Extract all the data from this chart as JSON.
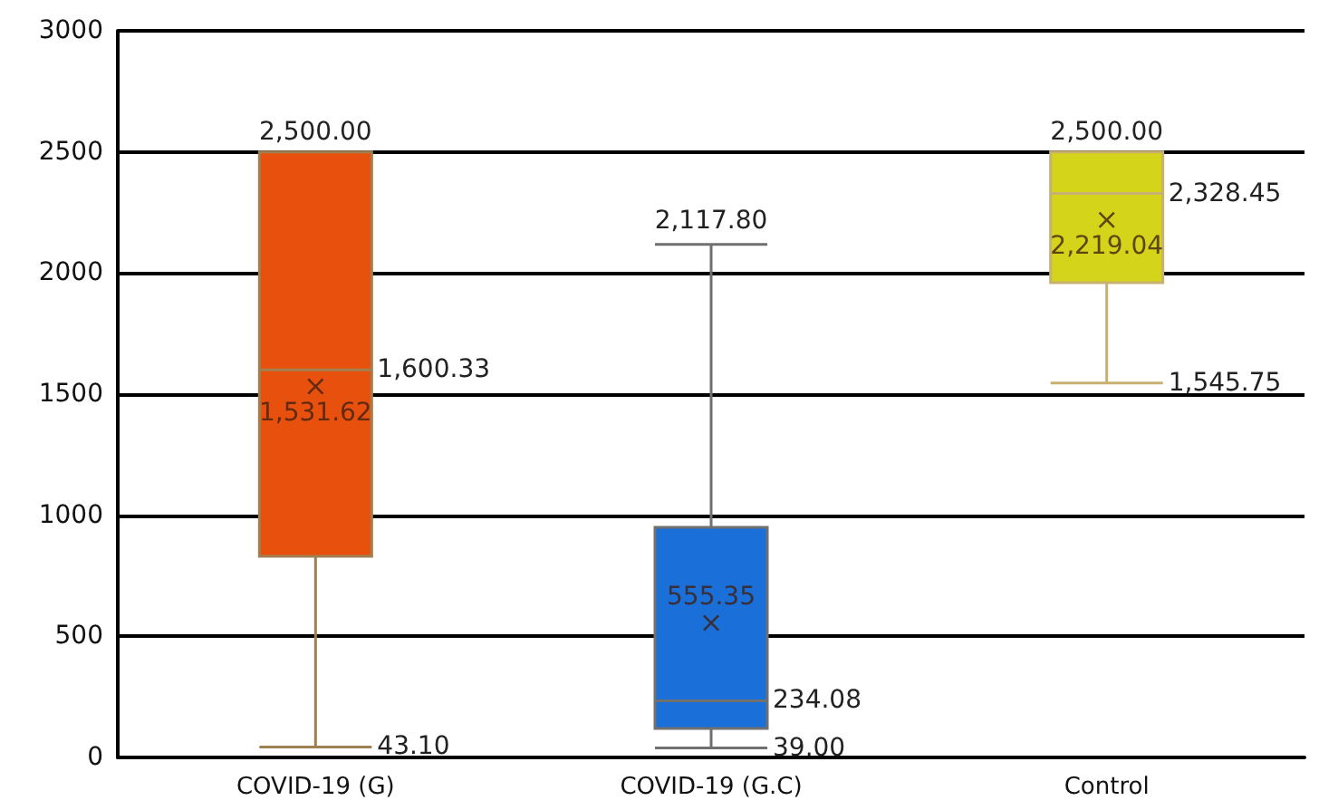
{
  "chart_data": {
    "type": "box",
    "categories": [
      "COVID-19 (G)",
      "COVID-19 (G.C)",
      "Control"
    ],
    "boxes": [
      {
        "low": 43.1,
        "q1": 830,
        "median": 1600.33,
        "q3": 2500,
        "high": 2500
      },
      {
        "low": 39,
        "q1": 120,
        "median": 234.08,
        "q3": 950,
        "high": 2117.8
      },
      {
        "low": 1545.75,
        "q1": 1960,
        "median": 2328.45,
        "q3": 2500,
        "high": 2500
      }
    ],
    "colors": [
      "#e8500e",
      "#1a6fd8",
      "#d4d41a"
    ],
    "series": [
      {
        "type": "scatter",
        "marker": "cross",
        "color": "#402010",
        "x": [
          "COVID-19 (G)",
          "COVID-19 (G.C)",
          "Control"
        ],
        "values": [
          1531.62,
          555.35,
          2219.04
        ],
        "value_labels": [
          "1,531.62",
          "555.35",
          "2,219.04"
        ]
      }
    ],
    "ylim": [
      0,
      3000
    ],
    "yticks": [
      0,
      500,
      1000,
      1500,
      2000,
      2500,
      3000
    ],
    "grid": "y",
    "annotations": [
      {
        "text": "2,500.00",
        "x": "COVID-19 (G)",
        "y": 2500
      },
      {
        "text": "1,600.33",
        "x": "COVID-19 (G)",
        "y": 1600.33
      },
      {
        "text": "43.10",
        "x": "COVID-19 (G)",
        "y": 43.1
      },
      {
        "text": "2,117.80",
        "x": "COVID-19 (G.C)",
        "y": 2117.8
      },
      {
        "text": "234.08",
        "x": "COVID-19 (G.C)",
        "y": 234.08
      },
      {
        "text": "39.00",
        "x": "COVID-19 (G.C)",
        "y": 39
      },
      {
        "text": "2,500.00",
        "x": "Control",
        "y": 2500
      },
      {
        "text": "2,328.45",
        "x": "Control",
        "y": 2328.45
      },
      {
        "text": "1,545.75",
        "x": "Control",
        "y": 1545.75
      }
    ]
  }
}
